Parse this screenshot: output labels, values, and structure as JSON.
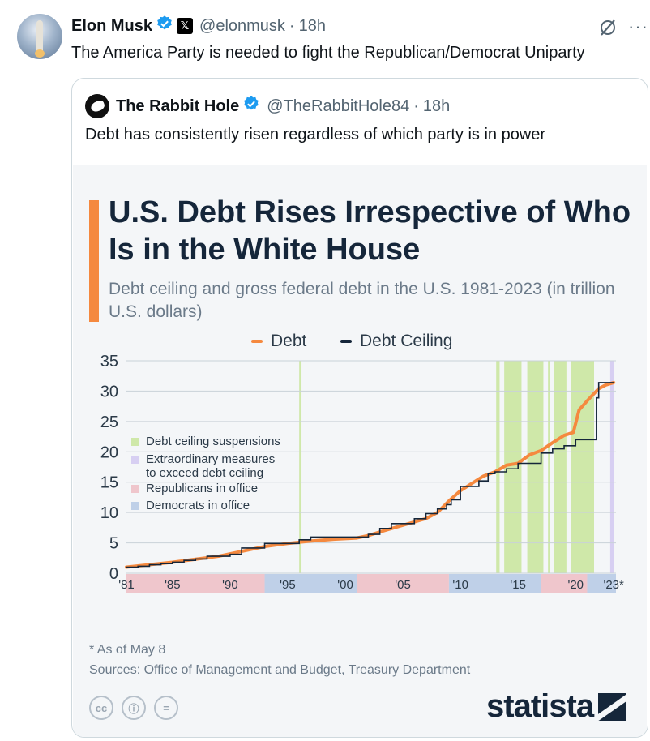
{
  "post": {
    "author_name": "Elon Musk",
    "handle": "@elonmusk",
    "separator": "·",
    "time": "18h",
    "text": "The America Party is needed to fight the Republican/Democrat Uniparty",
    "more_label": "···"
  },
  "quote": {
    "author_name": "The Rabbit Hole",
    "handle": "@TheRabbitHole84",
    "separator": "·",
    "time": "18h",
    "text": "Debt has consistently risen regardless of which party is in power"
  },
  "chart_data": {
    "type": "line",
    "title": "U.S. Debt Rises Irrespective of Who Is in the White House",
    "subtitle": "Debt ceiling and gross federal debt in the U.S. 1981-2023 (in trillion U.S. dollars)",
    "legend_top": [
      "Debt",
      "Debt Ceiling"
    ],
    "legend_inner": [
      "Debt ceiling suspensions",
      "Extraordinary measures to exceed debt ceiling",
      "Republicans in office",
      "Democrats in office"
    ],
    "y_ticks": [
      "35",
      "30",
      "25",
      "20",
      "15",
      "10",
      "5",
      "0"
    ],
    "ylim": [
      0,
      35
    ],
    "xlim": [
      1981,
      2023.5
    ],
    "x_ticks": [
      {
        "label": "'81",
        "year": 1981
      },
      {
        "label": "'85",
        "year": 1985
      },
      {
        "label": "'90",
        "year": 1990
      },
      {
        "label": "'95",
        "year": 1995
      },
      {
        "label": "'00",
        "year": 2000
      },
      {
        "label": "'05",
        "year": 2005
      },
      {
        "label": "'10",
        "year": 2010
      },
      {
        "label": "'15",
        "year": 2015
      },
      {
        "label": "'20",
        "year": 2020
      },
      {
        "label": "'23*",
        "year": 2023.3
      }
    ],
    "series": [
      {
        "name": "Debt",
        "color": "#f5893f",
        "x": [
          1981,
          1983,
          1985,
          1987,
          1989,
          1991,
          1993,
          1995,
          1997,
          1999,
          2001,
          2002,
          2003,
          2005,
          2007,
          2008,
          2009,
          2010,
          2011,
          2012,
          2013,
          2014,
          2015,
          2016,
          2017,
          2018,
          2019,
          2019.8,
          2020.3,
          2021,
          2022,
          2022.6,
          2023.3
        ],
        "y": [
          1.0,
          1.4,
          1.8,
          2.3,
          2.8,
          3.6,
          4.4,
          4.9,
          5.3,
          5.6,
          5.8,
          6.2,
          6.8,
          7.9,
          9.0,
          10.0,
          11.9,
          13.6,
          14.8,
          16.0,
          16.7,
          17.8,
          18.1,
          19.5,
          20.2,
          21.5,
          22.7,
          23.2,
          26.9,
          28.4,
          30.4,
          31.0,
          31.4
        ]
      },
      {
        "name": "Debt Ceiling",
        "color": "#15263a",
        "x": [
          1981,
          1982,
          1983,
          1984,
          1985,
          1986,
          1987,
          1988,
          1990,
          1991,
          1993,
          1996,
          1997,
          2002,
          2003,
          2004,
          2006,
          2007,
          2008,
          2008.8,
          2009.2,
          2010,
          2011.6,
          2012.4,
          2013,
          2014,
          2015,
          2015.6,
          2017,
          2018,
          2019,
          2020,
          2021,
          2021.8,
          2022,
          2023.3
        ],
        "y": [
          0.99,
          1.14,
          1.39,
          1.57,
          1.82,
          2.11,
          2.35,
          2.8,
          3.12,
          4.15,
          4.9,
          5.5,
          5.95,
          6.4,
          7.38,
          8.18,
          8.97,
          9.82,
          10.6,
          11.3,
          12.1,
          14.3,
          15.2,
          16.4,
          16.7,
          17.2,
          18.1,
          18.1,
          19.8,
          20.5,
          21.0,
          22.0,
          22.0,
          28.9,
          31.4,
          31.4
        ]
      }
    ],
    "suspensions": [
      [
        1996.0,
        1996.2
      ],
      [
        2013.1,
        2013.4
      ],
      [
        2013.8,
        2015.3
      ],
      [
        2015.8,
        2017.2
      ],
      [
        2017.6,
        2017.8
      ],
      [
        2018.1,
        2019.2
      ],
      [
        2019.6,
        2021.6
      ]
    ],
    "extraordinary": [
      [
        2023.0,
        2023.3
      ]
    ],
    "party_terms": [
      {
        "party": "R",
        "start": 1981,
        "end": 1993
      },
      {
        "party": "D",
        "start": 1993,
        "end": 2001
      },
      {
        "party": "R",
        "start": 2001,
        "end": 2009
      },
      {
        "party": "D",
        "start": 2009,
        "end": 2017
      },
      {
        "party": "R",
        "start": 2017,
        "end": 2021
      },
      {
        "party": "D",
        "start": 2021,
        "end": 2023.5
      }
    ],
    "colors": {
      "suspension": "#cfe8a9",
      "extraordinary": "#d7cff2",
      "republican": "#efc6cc",
      "democrat": "#bfd0e8",
      "grid": "#c9d1d8",
      "tick_text": "#2b3a48"
    },
    "footnote": "* As of May 8",
    "sources": "Sources: Office of Management and Budget, Treasury Department"
  },
  "brand": {
    "wordmark": "statista",
    "cc_icons": [
      "cc",
      "ⓘ",
      "="
    ]
  }
}
